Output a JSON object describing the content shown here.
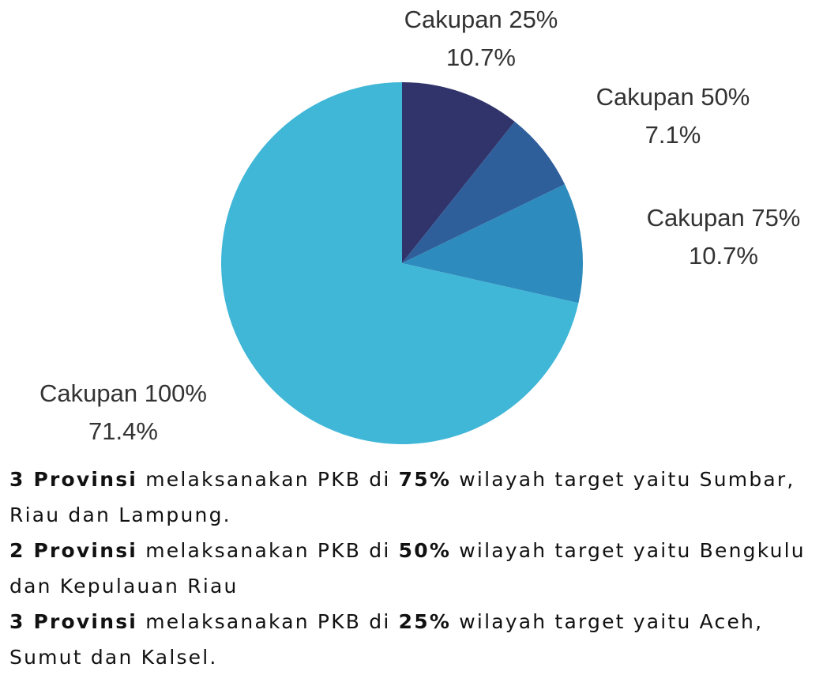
{
  "chart_data": {
    "type": "pie",
    "categories": [
      "Cakupan 25%",
      "Cakupan 50%",
      "Cakupan 75%",
      "Cakupan 100%"
    ],
    "values": [
      10.7,
      7.1,
      10.7,
      71.4
    ],
    "value_labels": [
      "10.7%",
      "7.1%",
      "10.7%",
      "71.4%"
    ],
    "colors": [
      "#30346a",
      "#2e5f9b",
      "#2e8bbd",
      "#41b7d7"
    ]
  },
  "notes": [
    [
      {
        "text": "3 Provinsi",
        "bold": true
      },
      {
        "text": " melaksanakan PKB di ",
        "bold": false
      },
      {
        "text": "75%",
        "bold": true
      },
      {
        "text": " wilayah target yaitu Sumbar, Riau dan Lampung.",
        "bold": false
      }
    ],
    [
      {
        "text": "2 Provinsi",
        "bold": true
      },
      {
        "text": " melaksanakan PKB di ",
        "bold": false
      },
      {
        "text": "50%",
        "bold": true
      },
      {
        "text": " wilayah target yaitu Bengkulu dan Kepulauan Riau",
        "bold": false
      }
    ],
    [
      {
        "text": "3 Provinsi",
        "bold": true
      },
      {
        "text": " melaksanakan PKB di ",
        "bold": false
      },
      {
        "text": "25%",
        "bold": true
      },
      {
        "text": " wilayah target yaitu Aceh, Sumut dan Kalsel.",
        "bold": false
      }
    ]
  ]
}
